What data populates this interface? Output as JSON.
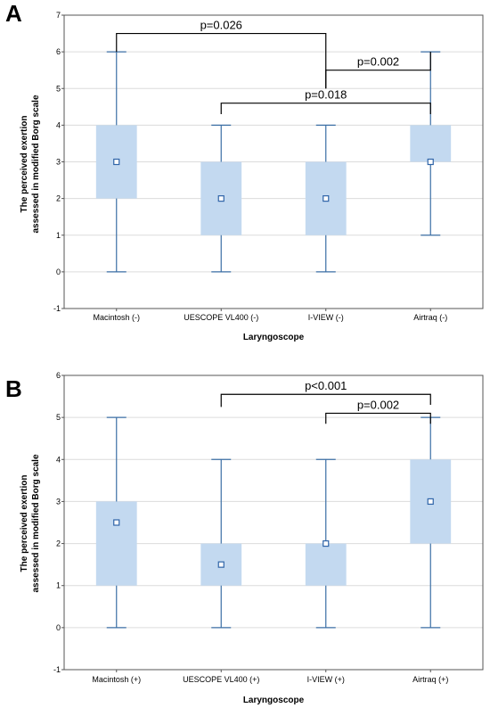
{
  "panels": [
    {
      "letter": "A",
      "chart_data": {
        "type": "box",
        "categories": [
          "Macintosh (-)",
          "UESCOPE VL400 (-)",
          "I-VIEW (-)",
          "Airtraq (-)"
        ],
        "series": [
          {
            "center": [
              3,
              2,
              2,
              3
            ],
            "q1": [
              2,
              1,
              1,
              3
            ],
            "q3": [
              4,
              3,
              3,
              4
            ],
            "min": [
              0,
              0,
              0,
              1
            ],
            "max": [
              6,
              4,
              4,
              6
            ]
          }
        ],
        "xlabel": "Laryngoscope",
        "ylabel": [
          "The perceived exertion",
          "assessed in modified Borg scale"
        ],
        "ylim": [
          -1,
          7
        ],
        "yticks": [
          -1,
          0,
          1,
          2,
          3,
          4,
          5,
          6,
          7
        ],
        "grid": true,
        "annotations": [
          {
            "text": "p=0.026",
            "from": 0,
            "to": 2,
            "y": 6.5,
            "drop_from": 6.0,
            "drop_to": 5.0
          },
          {
            "text": "p=0.002",
            "from": 2,
            "to": 3,
            "y": 5.5,
            "drop_from": 5.0,
            "drop_to": 6.0
          },
          {
            "text": "p=0.018",
            "from": 1,
            "to": 3,
            "y": 4.6,
            "drop_from": 4.3,
            "drop_to": 4.3
          }
        ]
      }
    },
    {
      "letter": "B",
      "chart_data": {
        "type": "box",
        "categories": [
          "Macintosh (+)",
          "UESCOPE VL400 (+)",
          "I-VIEW (+)",
          "Airtraq (+)"
        ],
        "series": [
          {
            "center": [
              2.5,
              1.5,
              2,
              3
            ],
            "q1": [
              1,
              1,
              1,
              2
            ],
            "q3": [
              3,
              2,
              2,
              4
            ],
            "min": [
              0,
              0,
              0,
              0
            ],
            "max": [
              5,
              4,
              4,
              5
            ]
          }
        ],
        "xlabel": "Laryngoscope",
        "ylabel": [
          "The perceived exertion",
          "assessed in modified Borg scale"
        ],
        "ylim": [
          -1,
          6
        ],
        "yticks": [
          -1,
          0,
          1,
          2,
          3,
          4,
          5,
          6
        ],
        "grid": true,
        "annotations": [
          {
            "text": "p<0.001",
            "from": 1,
            "to": 3,
            "y": 5.55,
            "drop_from": 5.25,
            "drop_to": 5.3
          },
          {
            "text": "p=0.002",
            "from": 2,
            "to": 3,
            "y": 5.1,
            "drop_from": 4.85,
            "drop_to": 4.85
          }
        ]
      }
    }
  ],
  "colors": {
    "box_fill": "#c3d9f0",
    "whisker": "#3b6fa5",
    "marker": "#2f64a8",
    "grid": "#dcdcdc",
    "axis": "#555555"
  }
}
